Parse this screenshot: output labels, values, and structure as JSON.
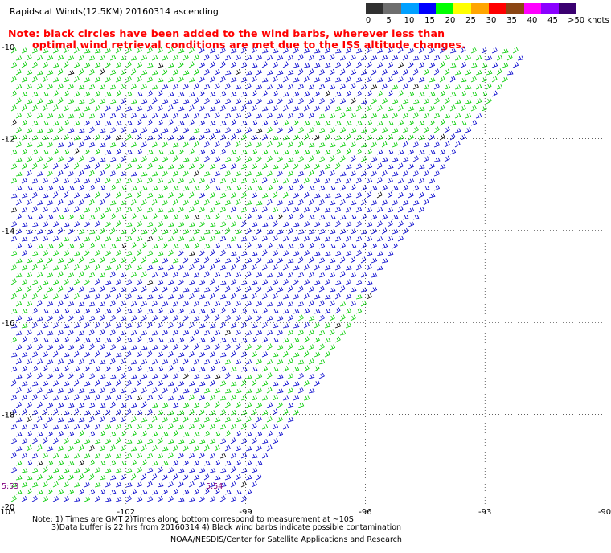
{
  "title": "Rapidscat Winds(12.5KM) 20160314 ascending",
  "note_line1": "Note: black circles have been added to the wind barbs, wherever less than",
  "note_line2": "optimal wind retrieval conditions are met due to the ISS altitude changes.",
  "legend": {
    "unit_label": ">50 knots",
    "labels": [
      "0",
      "5",
      "10",
      "15",
      "20",
      "25",
      "30",
      "35",
      "40",
      "45"
    ],
    "colors": [
      "#303030",
      "#6e6e6e",
      "#00a0ff",
      "#0000ff",
      "#00ff00",
      "#ffff00",
      "#ffa500",
      "#ff0000",
      "#8b4513",
      "#ff00ff",
      "#8a00ff",
      "#3a0070"
    ]
  },
  "map": {
    "lon_ticks": [
      "-105",
      "-102",
      "-99",
      "-96",
      "-93",
      "-90"
    ],
    "lat_ticks": [
      "-10",
      "-12",
      "-14",
      "-16",
      "-18",
      "-20"
    ],
    "lon_range": [
      -105,
      -90
    ],
    "lat_range": [
      -20,
      -10
    ],
    "time_labels": [
      "5:53",
      "5:54"
    ],
    "barb_colors": {
      "low": "#00cc00",
      "mid": "#0000cc",
      "flag": "#000000"
    }
  },
  "footer": {
    "line1": "Note: 1) Times are GMT 2)Times along bottom correspond to measurement at ~10S",
    "line2": "3)Data buffer is 22 hrs from 20160314 4) Black wind barbs indicate possible contamination",
    "line3": "NOAA/NESDIS/Center for Satellite Applications and Research"
  }
}
